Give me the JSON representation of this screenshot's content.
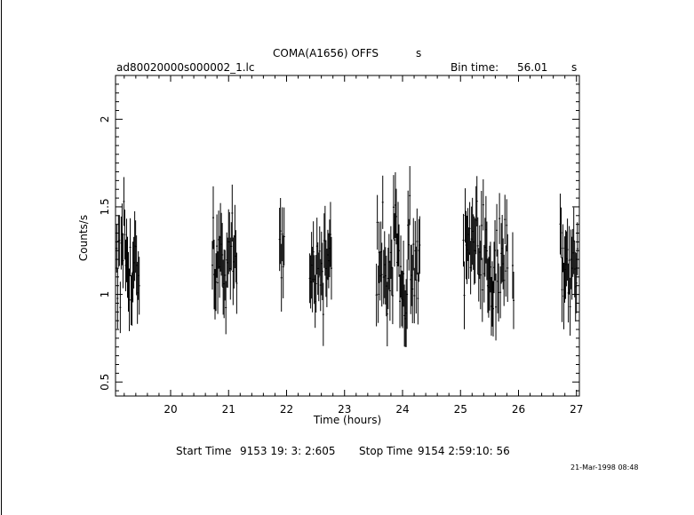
{
  "header": {
    "object": "COMA(A1656)  OFFS",
    "object_suffix": "s",
    "file": "ad80020000s000002_1.lc",
    "bin_label": "Bin time:",
    "bin_value": "56.01",
    "bin_unit": "s"
  },
  "footer": {
    "start_label": "Start Time",
    "start_value": "9153  19: 3: 2:605",
    "stop_label": "Stop Time",
    "stop_value": "9154   2:59:10: 56",
    "timestamp": "21-Mar-1998 08:48"
  },
  "chart_data": {
    "type": "scatter",
    "title": "COMA(A1656)  OFFS",
    "xlabel": "Time (hours)",
    "ylabel": "Counts/s",
    "xlim": [
      19.05,
      27.05
    ],
    "ylim": [
      0.42,
      2.25
    ],
    "xticks": [
      20,
      21,
      22,
      23,
      24,
      25,
      26,
      27
    ],
    "yticks": [
      0.5,
      1,
      1.5,
      2
    ],
    "ytick_labels": [
      "0.5",
      "1",
      "1.5",
      "2"
    ],
    "segments": [
      {
        "start": 19.07,
        "end": 19.47,
        "mean": 1.16,
        "amp": 0.17
      },
      {
        "start": 20.72,
        "end": 21.15,
        "mean": 1.18,
        "amp": 0.17
      },
      {
        "start": 21.88,
        "end": 21.97,
        "mean": 1.3,
        "amp": 0.16
      },
      {
        "start": 22.4,
        "end": 22.78,
        "mean": 1.15,
        "amp": 0.15
      },
      {
        "start": 23.55,
        "end": 24.3,
        "mean": 1.2,
        "amp": 0.2
      },
      {
        "start": 25.05,
        "end": 25.82,
        "mean": 1.2,
        "amp": 0.2
      },
      {
        "start": 25.9,
        "end": 25.92,
        "mean": 1.2,
        "amp": 0.18
      },
      {
        "start": 26.72,
        "end": 27.03,
        "mean": 1.15,
        "amp": 0.18
      }
    ],
    "bin_hours": 0.01556,
    "error_half": 0.16
  }
}
